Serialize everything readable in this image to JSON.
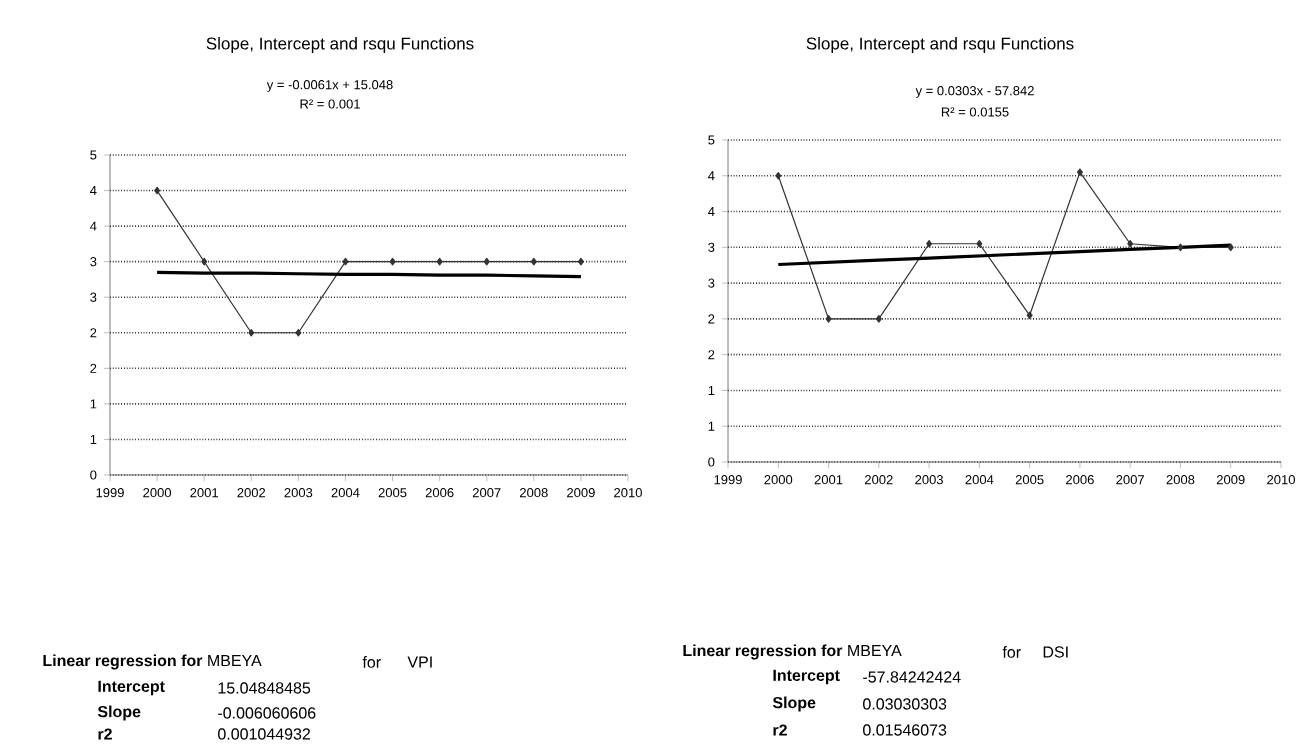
{
  "chart_data": [
    {
      "type": "line",
      "title": "Slope, Intercept and rsqu Functions",
      "x": [
        2000,
        2001,
        2002,
        2003,
        2004,
        2005,
        2006,
        2007,
        2008,
        2009
      ],
      "series": [
        {
          "color": "#333333",
          "values": [
            4.0,
            3.0,
            2.0,
            2.0,
            3.0,
            3.0,
            3.0,
            3.0,
            3.0,
            3.0
          ]
        },
        {
          "color": "#000000",
          "marker": "none",
          "values": [
            2.85,
            2.84,
            2.84,
            2.83,
            2.82,
            2.82,
            2.81,
            2.81,
            2.8,
            2.79
          ]
        }
      ],
      "xlim": [
        1999,
        2010
      ],
      "xticks": [
        1999,
        2000,
        2001,
        2002,
        2003,
        2004,
        2005,
        2006,
        2007,
        2008,
        2009,
        2010
      ],
      "ylim": [
        0,
        4.5
      ],
      "yticks": [
        0,
        {
          "value": 0.5,
          "label": "1"
        },
        1,
        {
          "value": 1.5,
          "label": "2"
        },
        2,
        {
          "value": 2.5,
          "label": "3"
        },
        3,
        {
          "value": 3.5,
          "label": "4"
        },
        4,
        {
          "value": 4.5,
          "label": "5"
        }
      ],
      "grid": "y",
      "marker": "diamond",
      "annotations": [
        "y = -0.0061x + 15.048",
        "R² = 0.001",
        "**Linear regression for** MBEYA",
        "for",
        "VPI",
        "Intercept",
        "15.04848485",
        "Slope",
        "-0.006060606",
        "r2",
        "0.001044932"
      ]
    },
    {
      "type": "line",
      "title": "Slope, Intercept and rsqu Functions",
      "x": [
        2000,
        2001,
        2002,
        2003,
        2004,
        2005,
        2006,
        2007,
        2008,
        2009
      ],
      "series": [
        {
          "color": "#333333",
          "values": [
            4.0,
            2.0,
            2.0,
            3.05,
            3.05,
            2.05,
            4.05,
            3.05,
            3.0,
            3.0
          ]
        },
        {
          "color": "#000000",
          "marker": "none",
          "values": [
            2.76,
            2.79,
            2.82,
            2.85,
            2.88,
            2.91,
            2.94,
            2.97,
            3.0,
            3.03
          ]
        }
      ],
      "xlim": [
        1999,
        2010
      ],
      "xticks": [
        1999,
        2000,
        2001,
        2002,
        2003,
        2004,
        2005,
        2006,
        2007,
        2008,
        2009,
        2010
      ],
      "ylim": [
        0,
        4.5
      ],
      "yticks": [
        0,
        {
          "value": 0.5,
          "label": "1"
        },
        1,
        {
          "value": 1.5,
          "label": "2"
        },
        2,
        {
          "value": 2.5,
          "label": "3"
        },
        3,
        {
          "value": 3.5,
          "label": "4"
        },
        4,
        {
          "value": 4.5,
          "label": "5"
        }
      ],
      "grid": "y",
      "marker": "diamond",
      "annotations": [
        "y = 0.0303x - 57.842",
        "R² = 0.0155",
        "**Linear regression for** MBEYA",
        "for",
        "DSI",
        "Intercept",
        "-57.84242424",
        "Slope",
        "0.03030303",
        "r2",
        "0.01546073"
      ]
    }
  ]
}
